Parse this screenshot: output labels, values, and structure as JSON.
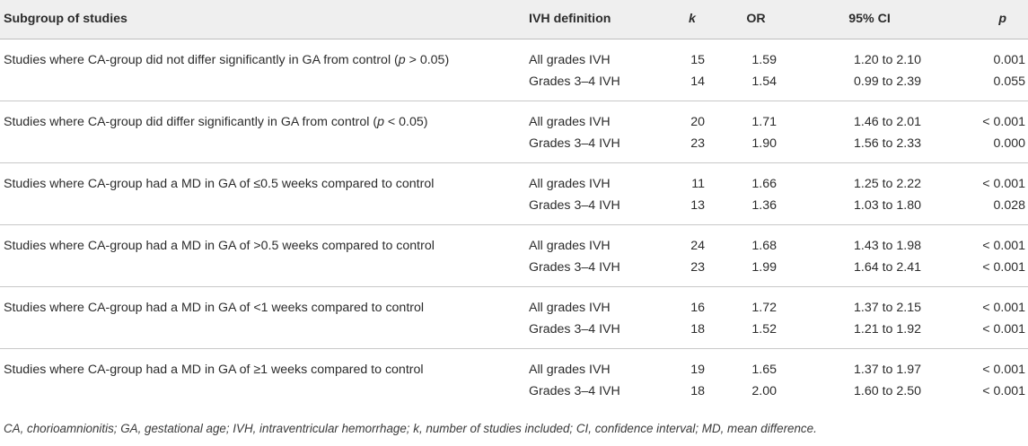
{
  "header": {
    "subgroup": "Subgroup of studies",
    "ivh_definition": "IVH definition",
    "k": "k",
    "or": "OR",
    "ci": "95% CI",
    "p": "p"
  },
  "groups": [
    {
      "subgroup_pre": "Studies where CA-group did not differ significantly in GA from control (",
      "subgroup_italic": "p",
      "subgroup_post": " > 0.05)",
      "rows": [
        {
          "ivh": "All grades IVH",
          "k": "15",
          "or": "1.59",
          "ci": "1.20 to 2.10",
          "p": "0.001"
        },
        {
          "ivh": "Grades 3–4 IVH",
          "k": "14",
          "or": "1.54",
          "ci": "0.99 to 2.39",
          "p": "0.055"
        }
      ]
    },
    {
      "subgroup_pre": "Studies where CA-group did differ significantly in GA from control (",
      "subgroup_italic": "p",
      "subgroup_post": " < 0.05)",
      "rows": [
        {
          "ivh": "All grades IVH",
          "k": "20",
          "or": "1.71",
          "ci": "1.46 to 2.01",
          "p": "< 0.001"
        },
        {
          "ivh": "Grades 3–4 IVH",
          "k": "23",
          "or": "1.90",
          "ci": "1.56 to 2.33",
          "p": "0.000"
        }
      ]
    },
    {
      "subgroup_pre": "Studies where CA-group had a MD in GA of ≤0.5 weeks compared to control",
      "subgroup_italic": "",
      "subgroup_post": "",
      "rows": [
        {
          "ivh": "All grades IVH",
          "k": "11",
          "or": "1.66",
          "ci": "1.25 to 2.22",
          "p": "< 0.001"
        },
        {
          "ivh": "Grades 3–4 IVH",
          "k": "13",
          "or": "1.36",
          "ci": "1.03 to 1.80",
          "p": "0.028"
        }
      ]
    },
    {
      "subgroup_pre": "Studies where CA-group had a MD in GA of >0.5 weeks compared to control",
      "subgroup_italic": "",
      "subgroup_post": "",
      "rows": [
        {
          "ivh": "All grades IVH",
          "k": "24",
          "or": "1.68",
          "ci": "1.43 to 1.98",
          "p": "< 0.001"
        },
        {
          "ivh": "Grades 3–4 IVH",
          "k": "23",
          "or": "1.99",
          "ci": "1.64 to 2.41",
          "p": "< 0.001"
        }
      ]
    },
    {
      "subgroup_pre": "Studies where CA-group had a MD in GA of <1 weeks compared to control",
      "subgroup_italic": "",
      "subgroup_post": "",
      "rows": [
        {
          "ivh": "All grades IVH",
          "k": "16",
          "or": "1.72",
          "ci": "1.37 to 2.15",
          "p": "< 0.001"
        },
        {
          "ivh": "Grades 3–4 IVH",
          "k": "18",
          "or": "1.52",
          "ci": "1.21 to 1.92",
          "p": "< 0.001"
        }
      ]
    },
    {
      "subgroup_pre": "Studies where CA-group had a MD in GA of ≥1 weeks compared to control",
      "subgroup_italic": "",
      "subgroup_post": "",
      "rows": [
        {
          "ivh": "All grades IVH",
          "k": "19",
          "or": "1.65",
          "ci": "1.37 to 1.97",
          "p": "< 0.001"
        },
        {
          "ivh": "Grades 3–4 IVH",
          "k": "18",
          "or": "2.00",
          "ci": "1.60 to 2.50",
          "p": "< 0.001"
        }
      ]
    }
  ],
  "footnote": "CA, chorioamnionitis; GA, gestational age; IVH, intraventricular hemorrhage; k, number of studies included; CI, confidence interval; MD, mean difference."
}
